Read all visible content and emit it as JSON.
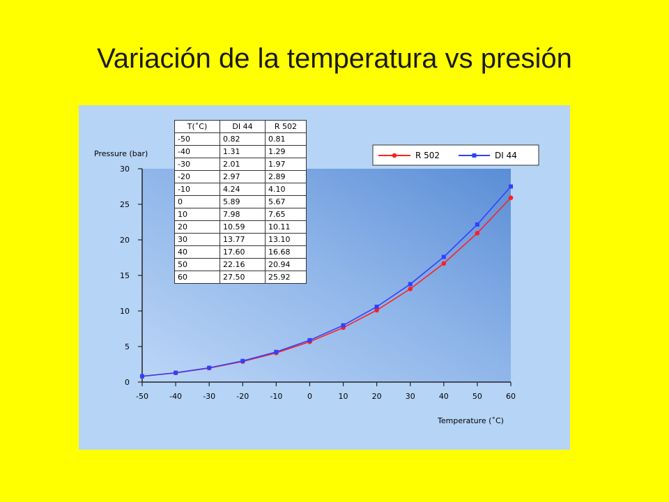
{
  "slide": {
    "title": "Variación de la temperatura vs presión"
  },
  "colors": {
    "background": "#ffff00",
    "panel": "#b6d4f6",
    "r502": "#ff2020",
    "di44": "#3040ff"
  },
  "chart_data": {
    "type": "line",
    "xlabel": "Temperature (˚C)",
    "ylabel": "Pressure (bar)",
    "xlim": [
      -50,
      60
    ],
    "ylim": [
      0,
      30
    ],
    "x": [
      -50,
      -40,
      -30,
      -20,
      -10,
      0,
      10,
      20,
      30,
      40,
      50,
      60
    ],
    "x_ticks": [
      "-50",
      "-40",
      "-30",
      "-20",
      "-10",
      "0",
      "10",
      "20",
      "30",
      "40",
      "50",
      "60"
    ],
    "y_ticks": [
      "0",
      "5",
      "10",
      "15",
      "20",
      "25",
      "30"
    ],
    "series": [
      {
        "name": "R 502",
        "color": "#ff2020",
        "marker": "circle",
        "values": [
          0.81,
          1.29,
          1.97,
          2.89,
          4.1,
          5.67,
          7.65,
          10.11,
          13.1,
          16.68,
          20.94,
          25.92
        ]
      },
      {
        "name": "DI 44",
        "color": "#3040ff",
        "marker": "square",
        "values": [
          0.82,
          1.31,
          2.01,
          2.97,
          4.24,
          5.89,
          7.98,
          10.59,
          13.77,
          17.6,
          22.16,
          27.5
        ]
      }
    ],
    "legend": "top-right",
    "grid": false,
    "table": {
      "headers": [
        "T(˚C)",
        "DI 44",
        "R 502"
      ],
      "rows": [
        [
          "-50",
          "0.82",
          "0.81"
        ],
        [
          "-40",
          "1.31",
          "1.29"
        ],
        [
          "-30",
          "2.01",
          "1.97"
        ],
        [
          "-20",
          "2.97",
          "2.89"
        ],
        [
          "-10",
          "4.24",
          "4.10"
        ],
        [
          "0",
          "5.89",
          "5.67"
        ],
        [
          "10",
          "7.98",
          "7.65"
        ],
        [
          "20",
          "10.59",
          "10.11"
        ],
        [
          "30",
          "13.77",
          "13.10"
        ],
        [
          "40",
          "17.60",
          "16.68"
        ],
        [
          "50",
          "22.16",
          "20.94"
        ],
        [
          "60",
          "27.50",
          "25.92"
        ]
      ]
    }
  }
}
